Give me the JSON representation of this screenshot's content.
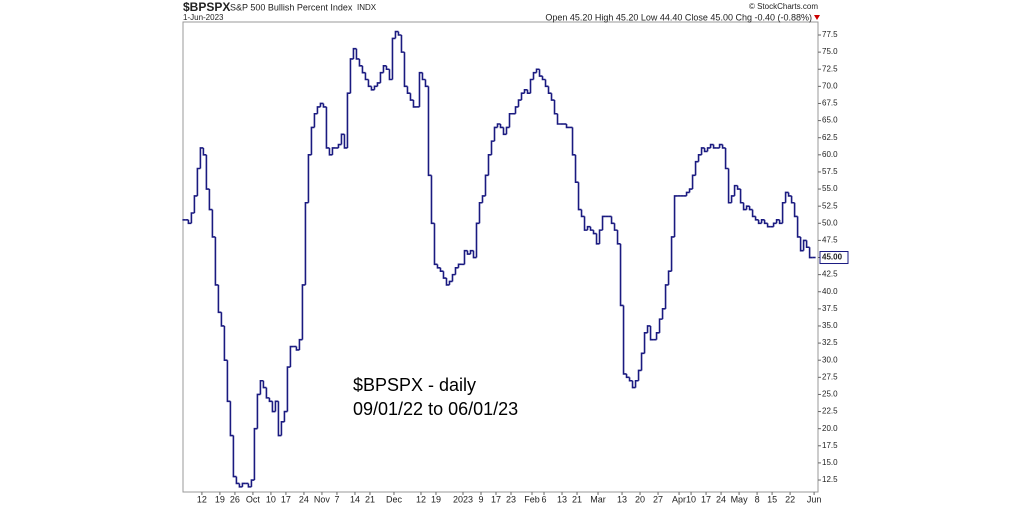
{
  "chart_data": {
    "type": "step-line",
    "symbol": "$BPSPX",
    "title": "S&P 500 Bullish Percent Index",
    "exchange": "INDX",
    "date": "1-Jun-2023",
    "quote": "Open 45.20 High 45.20 Low 44.40 Close 45.00 Chg -0.40 (-0.88%)",
    "credit": "© StockCharts.com",
    "annotation": [
      "$BPSPX - daily",
      "09/01/22 to 06/01/23"
    ],
    "color": "#1a1a80",
    "last_label": {
      "value": 45,
      "label": "45.00"
    },
    "values": [
      50.5,
      50.5,
      50,
      51.5,
      54,
      58,
      61,
      60,
      55,
      52,
      48,
      41,
      37,
      35,
      30,
      24,
      19,
      13,
      12,
      11.5,
      12,
      12,
      11.5,
      12.5,
      20,
      25,
      27,
      26,
      24.5,
      24,
      22.5,
      24,
      19,
      21,
      22.5,
      29,
      32,
      32,
      31.5,
      33,
      41,
      53,
      60,
      64,
      66,
      67,
      67.5,
      67,
      61,
      60,
      61,
      61,
      61.5,
      63,
      61,
      69,
      74,
      75.5,
      74,
      73,
      72,
      71,
      70,
      69.5,
      70,
      70.5,
      72,
      73,
      72.5,
      71,
      77,
      78,
      77.5,
      75,
      70,
      69,
      68,
      67,
      67,
      72,
      71,
      70,
      57,
      50,
      44,
      43.5,
      43,
      42,
      41,
      41.5,
      42.5,
      43.5,
      44,
      44,
      46,
      45.5,
      46,
      45,
      50,
      53,
      54,
      57,
      60,
      62,
      64,
      64.5,
      64,
      63,
      64,
      66,
      66,
      67,
      68,
      69,
      69.5,
      69,
      71,
      72,
      72.5,
      71.5,
      71,
      70,
      69,
      68,
      66,
      64.5,
      64.5,
      64.5,
      64,
      64,
      60,
      56,
      52,
      51,
      49,
      49.5,
      49,
      48.5,
      47,
      49,
      51,
      51,
      51,
      50,
      49,
      47,
      38,
      28,
      27.5,
      27,
      26,
      27,
      28.5,
      31,
      34,
      35,
      33,
      33,
      34,
      36,
      37.5,
      41,
      43,
      48,
      54,
      54,
      54,
      54,
      54.5,
      55,
      57,
      59,
      60,
      61,
      60.5,
      61,
      61.5,
      61,
      61,
      61.5,
      61,
      58,
      53,
      54,
      55.5,
      55,
      53,
      52,
      52.5,
      52,
      51,
      50.5,
      50,
      50.5,
      50,
      49.5,
      49.5,
      50,
      50.5,
      50,
      53,
      54.5,
      54,
      53,
      51,
      48,
      46,
      47.5,
      46.5,
      45,
      45
    ],
    "xlim": [
      -0.3,
      211.3
    ],
    "xticks": [
      {
        "value": 6,
        "label": "12"
      },
      {
        "value": 12,
        "label": "19"
      },
      {
        "value": 17,
        "label": "26"
      },
      {
        "value": 23,
        "label": "Oct"
      },
      {
        "value": 29,
        "label": "10"
      },
      {
        "value": 34,
        "label": "17"
      },
      {
        "value": 40,
        "label": "24"
      },
      {
        "value": 46,
        "label": "Nov"
      },
      {
        "value": 51,
        "label": "7"
      },
      {
        "value": 57,
        "label": "14"
      },
      {
        "value": 62,
        "label": "21"
      },
      {
        "value": 70,
        "label": "Dec"
      },
      {
        "value": 79,
        "label": "12"
      },
      {
        "value": 84,
        "label": "19"
      },
      {
        "value": 93,
        "label": "2023"
      },
      {
        "value": 99,
        "label": "9"
      },
      {
        "value": 104,
        "label": "17"
      },
      {
        "value": 109,
        "label": "23"
      },
      {
        "value": 116,
        "label": "Feb"
      },
      {
        "value": 120,
        "label": "6"
      },
      {
        "value": 126,
        "label": "13"
      },
      {
        "value": 131,
        "label": "21"
      },
      {
        "value": 138,
        "label": "Mar"
      },
      {
        "value": 146,
        "label": "13"
      },
      {
        "value": 152,
        "label": "20"
      },
      {
        "value": 158,
        "label": "27"
      },
      {
        "value": 165,
        "label": "Apr"
      },
      {
        "value": 169,
        "label": "10"
      },
      {
        "value": 174,
        "label": "17"
      },
      {
        "value": 179,
        "label": "24"
      },
      {
        "value": 185,
        "label": "May"
      },
      {
        "value": 191,
        "label": "8"
      },
      {
        "value": 196,
        "label": "15"
      },
      {
        "value": 202,
        "label": "22"
      },
      {
        "value": 210,
        "label": "Jun"
      }
    ],
    "ylim": [
      10.75,
      79.4
    ],
    "yticks": [
      12.5,
      {
        "value": 15,
        "label": "15.0"
      },
      17.5,
      {
        "value": 20,
        "label": "20.0"
      },
      22.5,
      {
        "value": 25,
        "label": "25.0"
      },
      27.5,
      {
        "value": 30,
        "label": "30.0"
      },
      32.5,
      {
        "value": 35,
        "label": "35.0"
      },
      37.5,
      {
        "value": 40,
        "label": "40.0"
      },
      42.5,
      {
        "value": 45,
        "label": "45.0"
      },
      47.5,
      {
        "value": 50,
        "label": "50.0"
      },
      52.5,
      {
        "value": 55,
        "label": "55.0"
      },
      57.5,
      {
        "value": 60,
        "label": "60.0"
      },
      62.5,
      {
        "value": 65,
        "label": "65.0"
      },
      67.5,
      {
        "value": 70,
        "label": "70.0"
      },
      72.5,
      {
        "value": 75,
        "label": "75.0"
      },
      77.5
    ],
    "grid": false
  }
}
